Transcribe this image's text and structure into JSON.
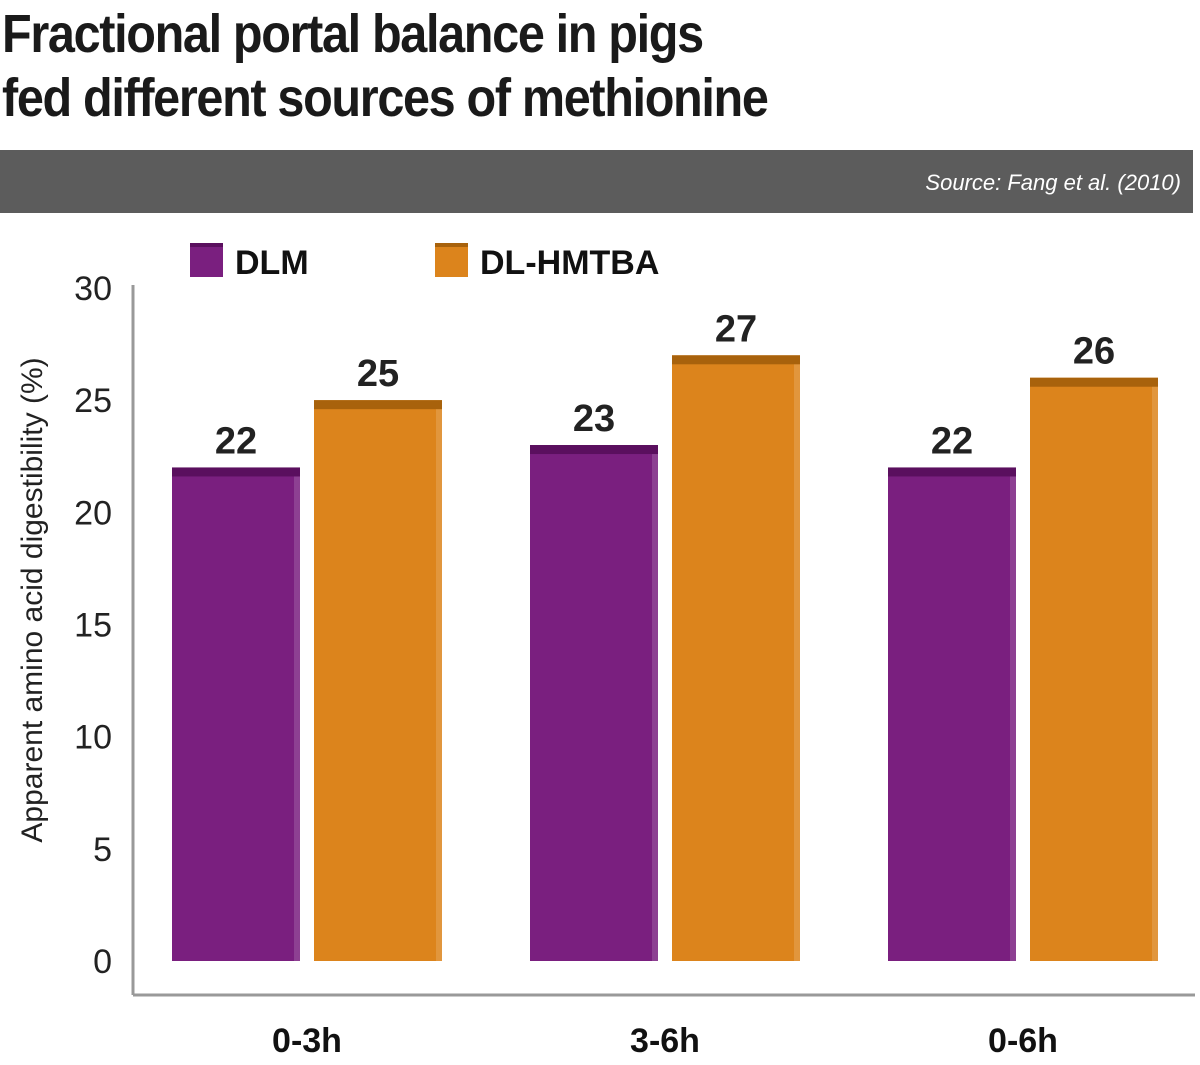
{
  "title_lines": [
    "Fractional portal balance in pigs",
    "fed different sources of methionine"
  ],
  "source": "Source: Fang et al. (2010)",
  "colors": {
    "DLM": "#7a1f7f",
    "DLM_top": "#5a0f5e",
    "DL-HMTBA": "#dc841c",
    "DL-HMTBA_top": "#a8620c",
    "band": "#5c5c5c"
  },
  "chart_data": {
    "type": "bar",
    "title": "Fractional portal balance in pigs fed different sources of methionine",
    "categories": [
      "0-3h",
      "3-6h",
      "0-6h"
    ],
    "series": [
      {
        "name": "DLM",
        "values": [
          22,
          23,
          22
        ]
      },
      {
        "name": "DL-HMTBA",
        "values": [
          25,
          27,
          26
        ]
      }
    ],
    "xlabel": "",
    "ylabel": "Apparent amino acid digestibility (%)",
    "ylim": [
      0,
      30
    ],
    "yticks": [
      0,
      5,
      10,
      15,
      20,
      25,
      30
    ],
    "grid": false,
    "legend": "top-left",
    "data_labels": true
  }
}
